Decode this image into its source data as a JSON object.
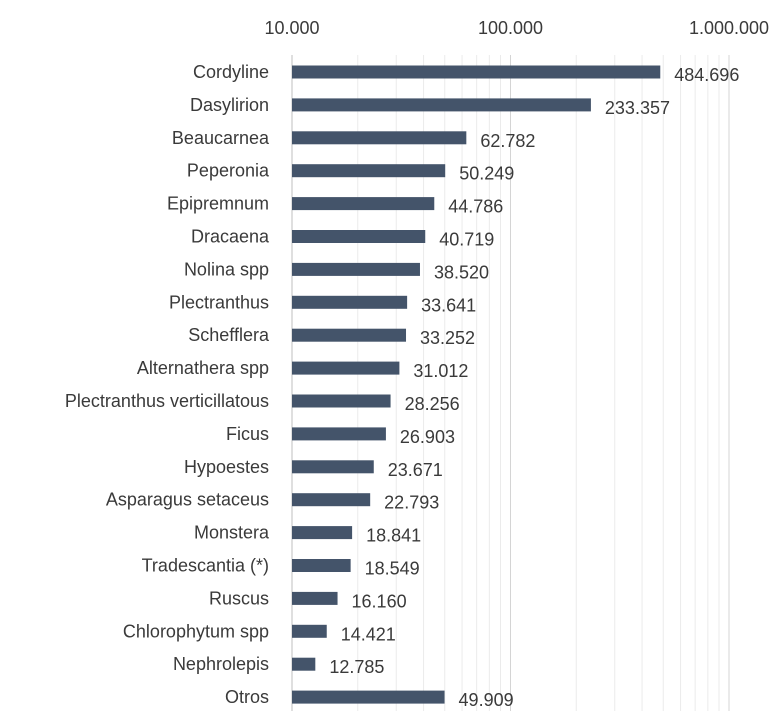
{
  "chart_data": {
    "type": "bar",
    "orientation": "horizontal",
    "x_scale": "log",
    "xlim": [
      10000,
      1000000
    ],
    "x_ticks": [
      10000,
      100000,
      1000000
    ],
    "x_tick_labels": [
      "10.000",
      "100.000",
      "1.000.000"
    ],
    "x_axis_position": "top",
    "grid": true,
    "bar_color": "#44546a",
    "categories": [
      "Cordyline",
      "Dasylirion",
      "Beaucarnea",
      "Peperonia",
      "Epipremnum",
      "Dracaena",
      "Nolina spp",
      "Plectranthus",
      "Schefflera",
      "Alternathera spp",
      "Plectranthus verticillatous",
      "Ficus",
      "Hypoestes",
      "Asparagus setaceus",
      "Monstera",
      "Tradescantia (*)",
      "Ruscus",
      "Chlorophytum spp",
      "Nephrolepis",
      "Otros"
    ],
    "values": [
      484696,
      233357,
      62782,
      50249,
      44786,
      40719,
      38520,
      33641,
      33252,
      31012,
      28256,
      26903,
      23671,
      22793,
      18841,
      18549,
      16160,
      14421,
      12785,
      49909
    ],
    "value_labels": [
      "484.696",
      "233.357",
      "62.782",
      "50.249",
      "44.786",
      "40.719",
      "38.520",
      "33.641",
      "33.252",
      "31.012",
      "28.256",
      "26.903",
      "23.671",
      "22.793",
      "18.841",
      "18.549",
      "16.160",
      "14.421",
      "12.785",
      "49.909"
    ]
  }
}
